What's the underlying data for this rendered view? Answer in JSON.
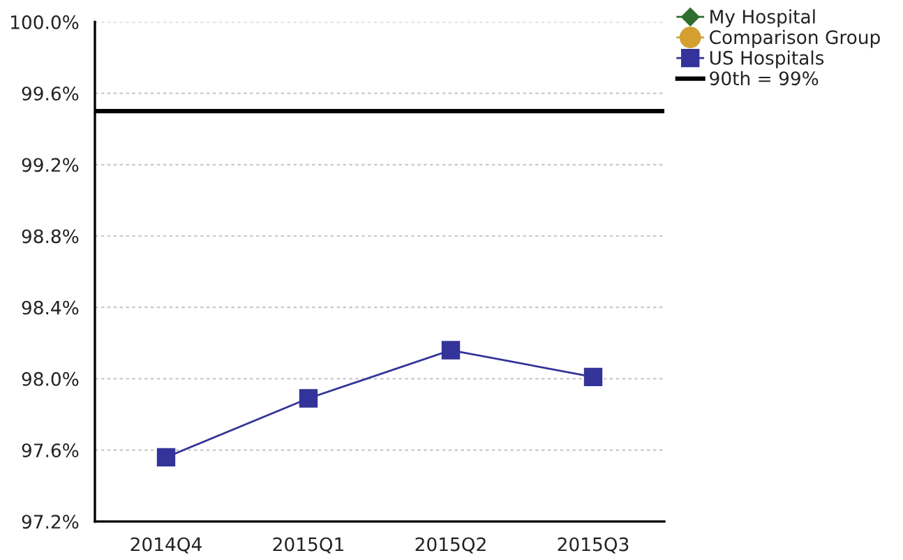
{
  "chart_data": {
    "type": "line",
    "categories": [
      "2014Q4",
      "2015Q1",
      "2015Q2",
      "2015Q3"
    ],
    "series": [
      {
        "name": "My Hospital",
        "color": "#2f6e2f",
        "marker": "diamond",
        "values": [
          null,
          null,
          null,
          null
        ]
      },
      {
        "name": "Comparison Group",
        "color": "#d4a030",
        "marker": "circle",
        "values": [
          null,
          null,
          null,
          null
        ]
      },
      {
        "name": "US Hospitals",
        "color": "#333399",
        "marker": "square",
        "values": [
          97.56,
          97.89,
          98.16,
          98.01
        ]
      }
    ],
    "ylim": [
      97.2,
      100.0
    ],
    "yticks": [
      {
        "value": 97.2,
        "label": "97.2%"
      },
      {
        "value": 97.6,
        "label": "97.6%"
      },
      {
        "value": 98.0,
        "label": "98.0%"
      },
      {
        "value": 98.4,
        "label": "98.4%"
      },
      {
        "value": 98.8,
        "label": "98.8%"
      },
      {
        "value": 99.2,
        "label": "99.2%"
      },
      {
        "value": 99.6,
        "label": "99.6%"
      },
      {
        "value": 100.0,
        "label": "100.0%"
      }
    ],
    "ref_lines": [
      {
        "axis": "y",
        "value": 99.5,
        "label": "90th = 99%",
        "color": "#000000",
        "line_style": "solid"
      }
    ],
    "grid": "y",
    "legend": "top right",
    "line_style": "solid"
  }
}
